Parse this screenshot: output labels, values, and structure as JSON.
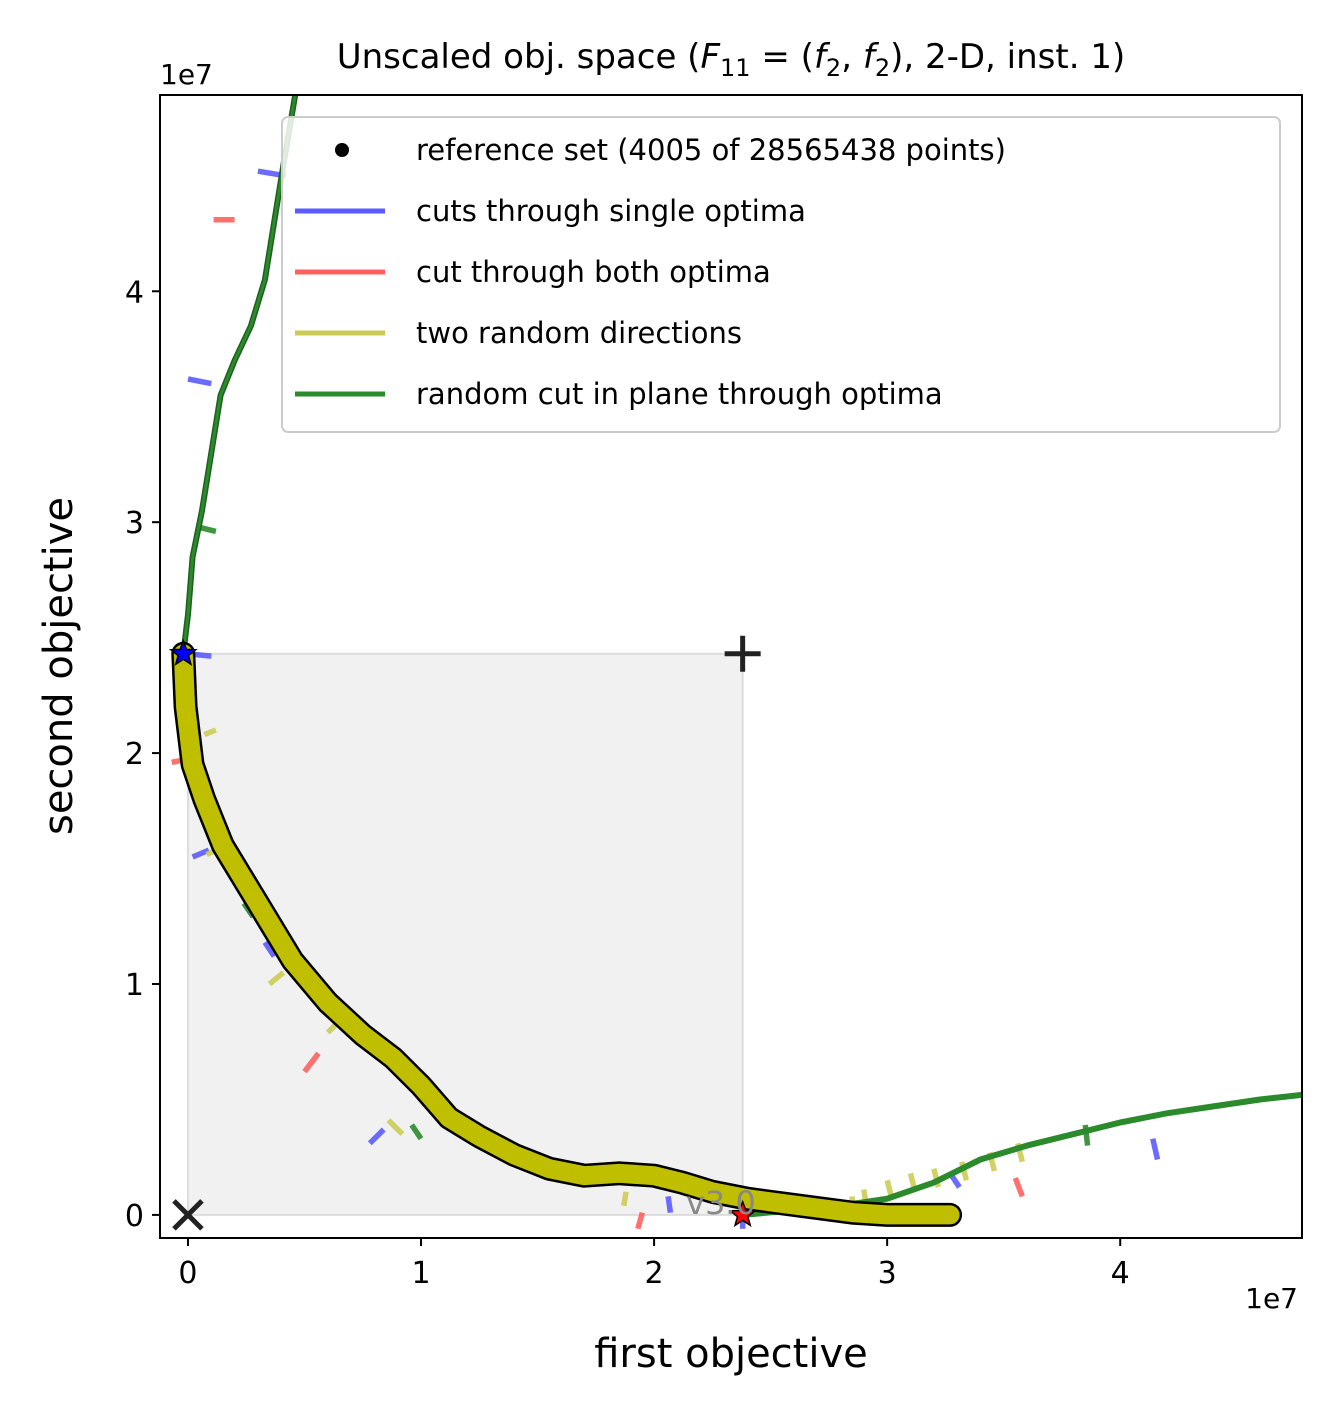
{
  "chart_data": {
    "type": "line",
    "title": "Unscaled obj. space (F_11 = (f_2, f_2), 2-D, inst. 1)",
    "title_parts": {
      "prefix": "Unscaled obj. space (",
      "F": "F",
      "F_sub": "11",
      "eq": " = (",
      "f1": "f",
      "f1_sub": "2",
      "comma": ", ",
      "f2": "f",
      "f2_sub": "2",
      "suffix": "), 2-D, inst. 1)"
    },
    "xlabel": "first objective",
    "ylabel": "second objective",
    "x_exponent_label": "1e7",
    "y_exponent_label": "1e7",
    "xlim": [
      -0.12,
      4.78
    ],
    "ylim": [
      -0.1,
      4.85
    ],
    "x_ticks": [
      0,
      1,
      2,
      3,
      4
    ],
    "x_tick_labels": [
      "0",
      "1",
      "2",
      "3",
      "4"
    ],
    "y_ticks": [
      0,
      1,
      2,
      3,
      4
    ],
    "y_tick_labels": [
      "0",
      "1",
      "2",
      "3",
      "4"
    ],
    "legend_position": "top-right",
    "colors": {
      "reference": "#000000",
      "single_optima": "#5b5bff",
      "both_optima": "#ff6161",
      "random_directions": "#cccc55",
      "plane_cut": "#2b8a2b",
      "front_fill": "#bfbf00",
      "region_fill": "#f1f1f1"
    },
    "legend": [
      {
        "label": "reference set (4005 of 28565438 points)",
        "marker": "dot",
        "color": "#000000"
      },
      {
        "label": "cuts through single optima",
        "marker": "line",
        "color": "#5b5bff"
      },
      {
        "label": "cut through both optima",
        "marker": "line",
        "color": "#ff6161"
      },
      {
        "label": "two random directions",
        "marker": "line",
        "color": "#cccc55"
      },
      {
        "label": "random cut in plane through optima",
        "marker": "line",
        "color": "#2b8a2b"
      }
    ],
    "reference_front": {
      "name": "reference set (4005 of 28565438 points)",
      "points": [
        [
          -0.02,
          2.43
        ],
        [
          -0.01,
          2.2
        ],
        [
          0.02,
          1.95
        ],
        [
          0.07,
          1.8
        ],
        [
          0.15,
          1.6
        ],
        [
          0.3,
          1.35
        ],
        [
          0.45,
          1.1
        ],
        [
          0.6,
          0.92
        ],
        [
          0.75,
          0.78
        ],
        [
          0.88,
          0.68
        ],
        [
          1.0,
          0.56
        ],
        [
          1.12,
          0.42
        ],
        [
          1.25,
          0.34
        ],
        [
          1.4,
          0.26
        ],
        [
          1.55,
          0.2
        ],
        [
          1.7,
          0.17
        ],
        [
          1.85,
          0.18
        ],
        [
          2.0,
          0.17
        ],
        [
          2.12,
          0.14
        ],
        [
          2.25,
          0.1
        ],
        [
          2.4,
          0.07
        ],
        [
          2.55,
          0.05
        ],
        [
          2.7,
          0.03
        ],
        [
          2.85,
          0.01
        ],
        [
          3.0,
          0.0
        ],
        [
          3.1,
          0.0
        ],
        [
          3.2,
          0.0
        ],
        [
          3.27,
          0.0
        ]
      ]
    },
    "plane_cut": {
      "name": "random cut in plane through optima",
      "points": [
        [
          -0.02,
          2.43
        ],
        [
          0.0,
          2.6
        ],
        [
          0.02,
          2.85
        ],
        [
          0.06,
          3.05
        ],
        [
          0.1,
          3.3
        ],
        [
          0.14,
          3.55
        ],
        [
          0.2,
          3.7
        ],
        [
          0.27,
          3.85
        ],
        [
          0.33,
          4.05
        ],
        [
          0.37,
          4.3
        ],
        [
          0.41,
          4.55
        ],
        [
          0.46,
          4.85
        ],
        [
          0.5,
          5.2
        ]
      ],
      "points_right": [
        [
          2.38,
          0.0
        ],
        [
          2.6,
          0.02
        ],
        [
          2.8,
          0.04
        ],
        [
          3.0,
          0.07
        ],
        [
          3.2,
          0.14
        ],
        [
          3.4,
          0.24
        ],
        [
          3.6,
          0.3
        ],
        [
          3.8,
          0.35
        ],
        [
          4.0,
          0.4
        ],
        [
          4.2,
          0.44
        ],
        [
          4.4,
          0.47
        ],
        [
          4.6,
          0.5
        ],
        [
          4.78,
          0.52
        ]
      ]
    },
    "single_optima_cuts": [
      [
        [
          0.3,
          4.52
        ],
        [
          0.42,
          4.5
        ]
      ],
      [
        [
          0.0,
          3.62
        ],
        [
          0.1,
          3.6
        ]
      ],
      [
        [
          0.0,
          2.43
        ],
        [
          0.1,
          2.42
        ]
      ],
      [
        [
          0.02,
          1.55
        ],
        [
          0.09,
          1.58
        ]
      ],
      [
        [
          0.33,
          1.18
        ],
        [
          0.37,
          1.12
        ]
      ],
      [
        [
          0.78,
          0.31
        ],
        [
          0.84,
          0.37
        ]
      ],
      [
        [
          2.06,
          0.08
        ],
        [
          2.07,
          0.01
        ]
      ],
      [
        [
          2.38,
          -0.06
        ],
        [
          2.38,
          0.03
        ]
      ],
      [
        [
          3.27,
          0.18
        ],
        [
          3.31,
          0.12
        ]
      ],
      [
        [
          4.14,
          0.33
        ],
        [
          4.16,
          0.24
        ]
      ]
    ],
    "both_optima_cuts": [
      [
        [
          0.11,
          4.31
        ],
        [
          0.2,
          4.31
        ]
      ],
      [
        [
          -0.07,
          1.96
        ],
        [
          0.03,
          1.98
        ]
      ],
      [
        [
          0.5,
          0.62
        ],
        [
          0.56,
          0.7
        ]
      ],
      [
        [
          1.93,
          -0.06
        ],
        [
          1.95,
          0.01
        ]
      ],
      [
        [
          3.55,
          0.16
        ],
        [
          3.58,
          0.08
        ]
      ]
    ],
    "random_direction_cuts": [
      [
        [
          0.07,
          2.08
        ],
        [
          0.12,
          2.1
        ]
      ],
      [
        [
          0.08,
          1.56
        ],
        [
          0.16,
          1.6
        ]
      ],
      [
        [
          0.35,
          1.0
        ],
        [
          0.41,
          1.05
        ]
      ],
      [
        [
          0.6,
          0.79
        ],
        [
          0.66,
          0.85
        ]
      ],
      [
        [
          0.86,
          0.41
        ],
        [
          0.92,
          0.35
        ]
      ],
      [
        [
          1.34,
          0.24
        ],
        [
          1.35,
          0.31
        ]
      ],
      [
        [
          1.87,
          0.04
        ],
        [
          1.88,
          0.1
        ]
      ],
      [
        [
          2.3,
          0.06
        ],
        [
          2.31,
          0.13
        ]
      ],
      [
        [
          2.85,
          0.08
        ],
        [
          2.85,
          0.0
        ]
      ],
      [
        [
          2.9,
          0.11
        ],
        [
          2.91,
          0.04
        ]
      ],
      [
        [
          3.0,
          0.15
        ],
        [
          3.02,
          0.07
        ]
      ],
      [
        [
          3.1,
          0.18
        ],
        [
          3.12,
          0.1
        ]
      ],
      [
        [
          3.2,
          0.2
        ],
        [
          3.22,
          0.12
        ]
      ],
      [
        [
          3.32,
          0.23
        ],
        [
          3.34,
          0.15
        ]
      ],
      [
        [
          3.44,
          0.27
        ],
        [
          3.46,
          0.19
        ]
      ],
      [
        [
          3.56,
          0.31
        ],
        [
          3.58,
          0.23
        ]
      ]
    ],
    "plane_cut_ticks": [
      [
        [
          0.04,
          2.98
        ],
        [
          0.12,
          2.96
        ]
      ],
      [
        [
          0.24,
          1.35
        ],
        [
          0.28,
          1.29
        ]
      ],
      [
        [
          0.96,
          0.39
        ],
        [
          1.0,
          0.33
        ]
      ],
      [
        [
          2.39,
          0.09
        ],
        [
          2.4,
          0.02
        ]
      ],
      [
        [
          3.85,
          0.39
        ],
        [
          3.86,
          0.3
        ]
      ]
    ],
    "dominated_region": {
      "x": [
        0,
        2.38
      ],
      "y": [
        0,
        2.43
      ]
    },
    "markers": {
      "optimum_1": {
        "x": -0.02,
        "y": 2.43,
        "color": "#0000ff",
        "shape": "star"
      },
      "optimum_2": {
        "x": 2.38,
        "y": 0.0,
        "color": "#ff0000",
        "shape": "star"
      },
      "ideal_point": {
        "x": 0,
        "y": 0,
        "shape": "x"
      },
      "nadir_point": {
        "x": 2.38,
        "y": 2.43,
        "shape": "+"
      }
    },
    "version_label": "v3.0"
  }
}
